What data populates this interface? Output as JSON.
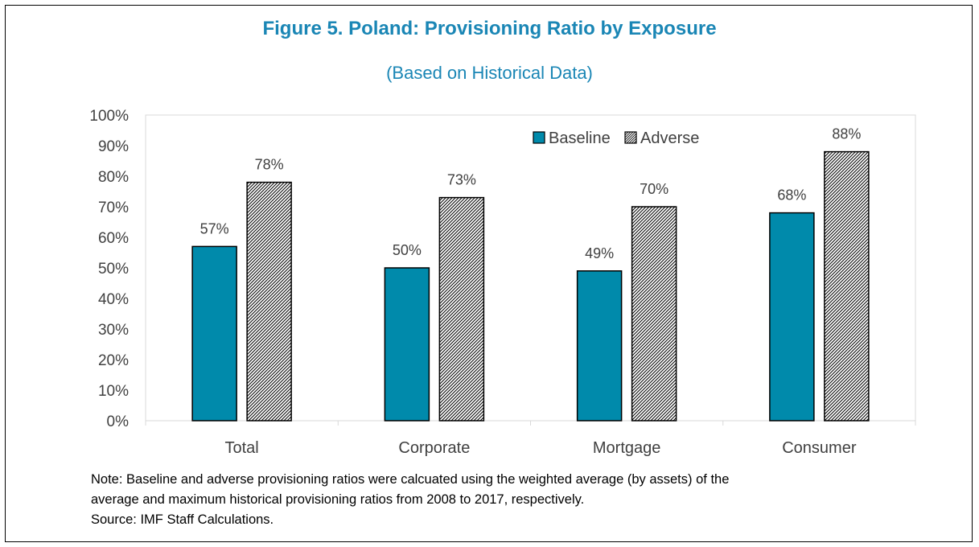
{
  "title": "Figure 5. Poland: Provisioning Ratio by Exposure",
  "subtitle": "(Based on Historical Data)",
  "chart_data": {
    "type": "bar",
    "categories": [
      "Total",
      "Corporate",
      "Mortgage",
      "Consumer"
    ],
    "series": [
      {
        "name": "Baseline",
        "values": [
          57,
          50,
          49,
          68
        ],
        "labels": [
          "57%",
          "50%",
          "49%",
          "68%"
        ],
        "color": "#008aab",
        "pattern": "solid"
      },
      {
        "name": "Adverse",
        "values": [
          78,
          73,
          70,
          88
        ],
        "labels": [
          "78%",
          "73%",
          "70%",
          "88%"
        ],
        "color": "#ffffff",
        "pattern": "diagonal-hatch"
      }
    ],
    "yticks": [
      "0%",
      "10%",
      "20%",
      "30%",
      "40%",
      "50%",
      "60%",
      "70%",
      "80%",
      "90%",
      "100%"
    ],
    "ylim": [
      0,
      100
    ],
    "xlabel": "",
    "ylabel": "",
    "grid": false,
    "legend": "top-right"
  },
  "note": {
    "line1": "Note: Baseline and adverse provisioning ratios were calcuated using the weighted average (by assets) of the",
    "line2": "average and maximum historical provisioning ratios from 2008 to 2017, respectively.",
    "source": "Source: IMF Staff Calculations."
  }
}
